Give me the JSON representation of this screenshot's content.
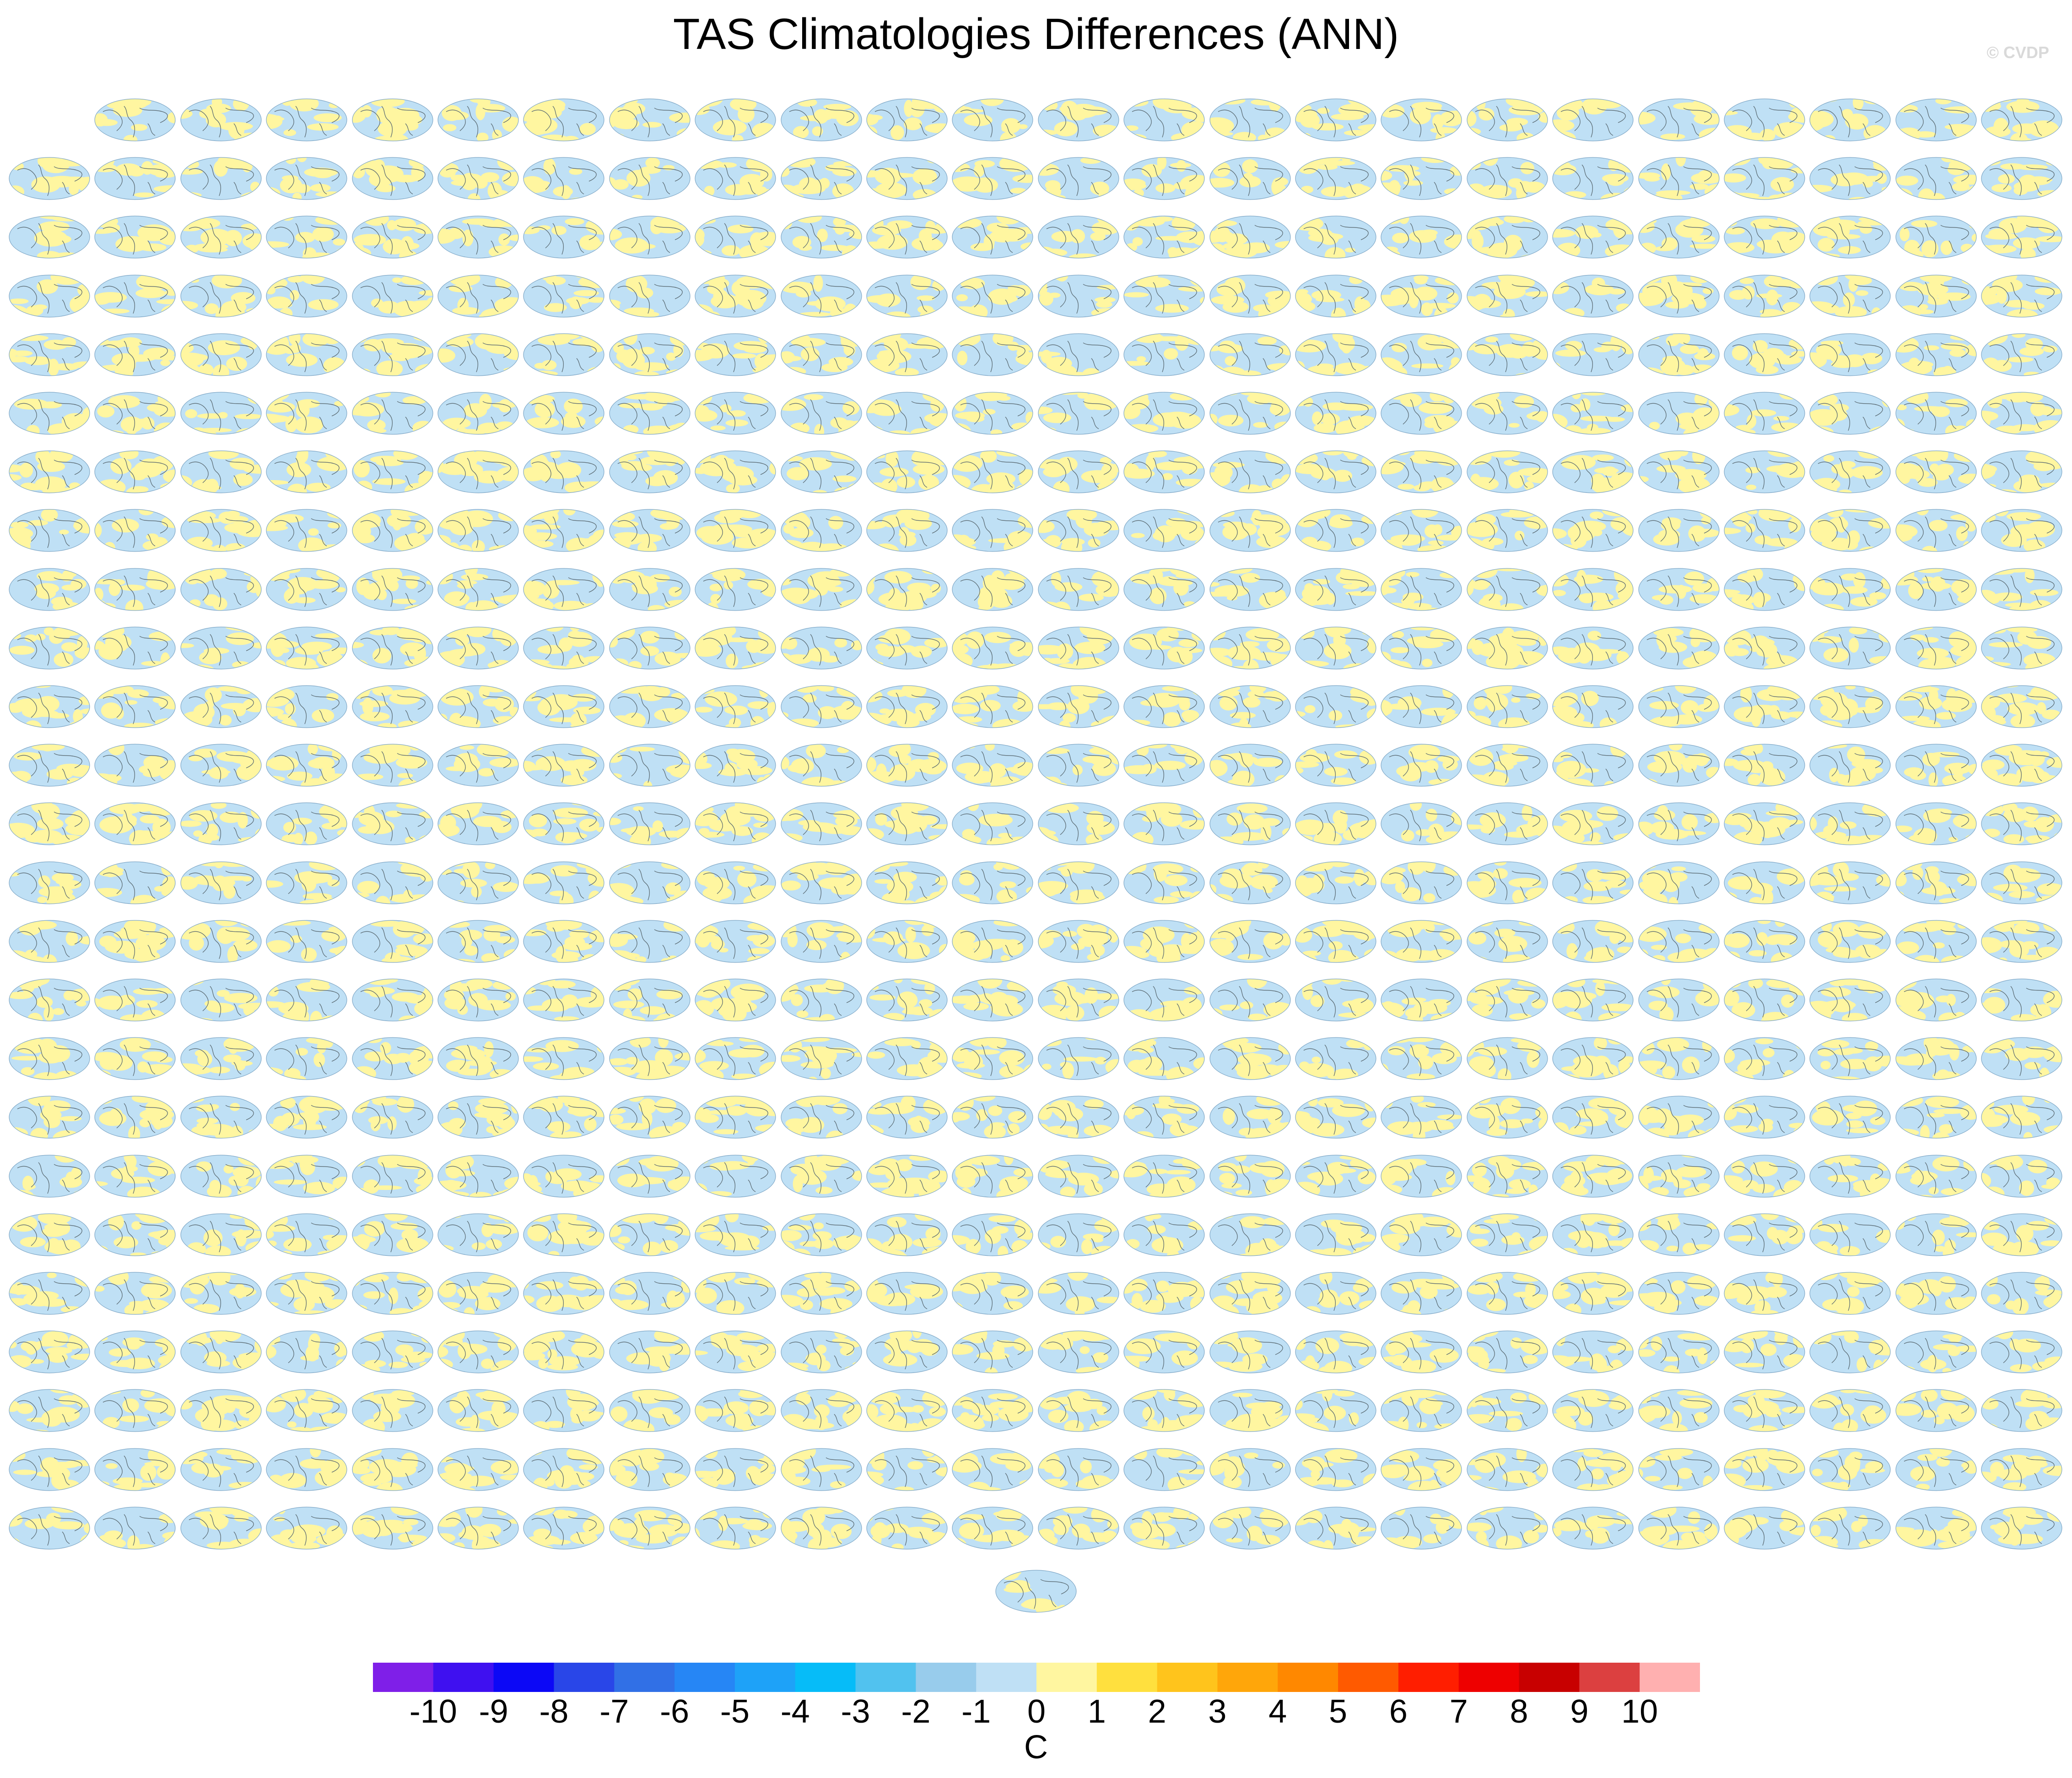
{
  "title": "TAS Climatologies Differences (ANN)",
  "watermark": "© CVDP",
  "chart_data": {
    "type": "heatmap",
    "title": "TAS Climatologies Differences (ANN)",
    "panel_grid": {
      "rows": 25,
      "columns": 24,
      "first_row_panels": 23,
      "extra_bottom_panels": 1,
      "panel_content": "global surface air temperature difference map (mostly -1 to 1 C)"
    },
    "colorbar": {
      "unit": "C",
      "tick_labels": [
        "-10",
        "-9",
        "-8",
        "-7",
        "-6",
        "-5",
        "-4",
        "-3",
        "-2",
        "-1",
        "0",
        "1",
        "2",
        "3",
        "4",
        "5",
        "6",
        "7",
        "8",
        "9",
        "10"
      ],
      "colors": [
        "#7f1fe8",
        "#3f10f0",
        "#0c08f6",
        "#2946e8",
        "#3170e6",
        "#2686f5",
        "#1ea2f8",
        "#06bcf8",
        "#51c2ef",
        "#98ccec",
        "#bfe0f5",
        "#fff6a0",
        "#ffe03e",
        "#ffc41c",
        "#ffa60a",
        "#ff8800",
        "#ff5a00",
        "#ff1e00",
        "#ee0000",
        "#c80000",
        "#dc4040",
        "#ffb0b0"
      ]
    }
  }
}
